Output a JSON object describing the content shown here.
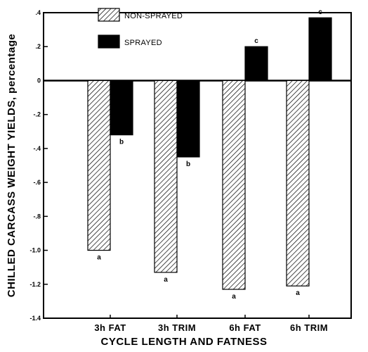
{
  "chart_data": {
    "type": "bar",
    "title": "",
    "xlabel": "CYCLE LENGTH AND FATNESS",
    "ylabel": "CHILLED CARCASS WEIGHT YIELDS, percentage",
    "ylim": [
      -1.4,
      0.4
    ],
    "yticks": [
      0.4,
      0.2,
      0,
      -0.2,
      -0.4,
      -0.6,
      -0.8,
      -1.0,
      -1.2,
      -1.4
    ],
    "ytick_labels": [
      ".4",
      ".2",
      "0",
      "-.2",
      "-.4",
      "-.6",
      "-.8",
      "-1.0",
      "-1.2",
      "-1.4"
    ],
    "grid": false,
    "legend_position": "top-left",
    "categories": [
      "3h FAT",
      "3h TRIM",
      "6h FAT",
      "6h TRIM"
    ],
    "series": [
      {
        "name": "NON-SPRAYED",
        "style": "hatched",
        "color": "#000000",
        "values": [
          -1.0,
          -1.13,
          -1.23,
          -1.21
        ],
        "significance": [
          "a",
          "a",
          "a",
          "a"
        ]
      },
      {
        "name": "SPRAYED",
        "style": "solid",
        "color": "#000000",
        "values": [
          -0.32,
          -0.45,
          0.2,
          0.37
        ],
        "significance": [
          "b",
          "b",
          "c",
          "c"
        ]
      }
    ]
  }
}
